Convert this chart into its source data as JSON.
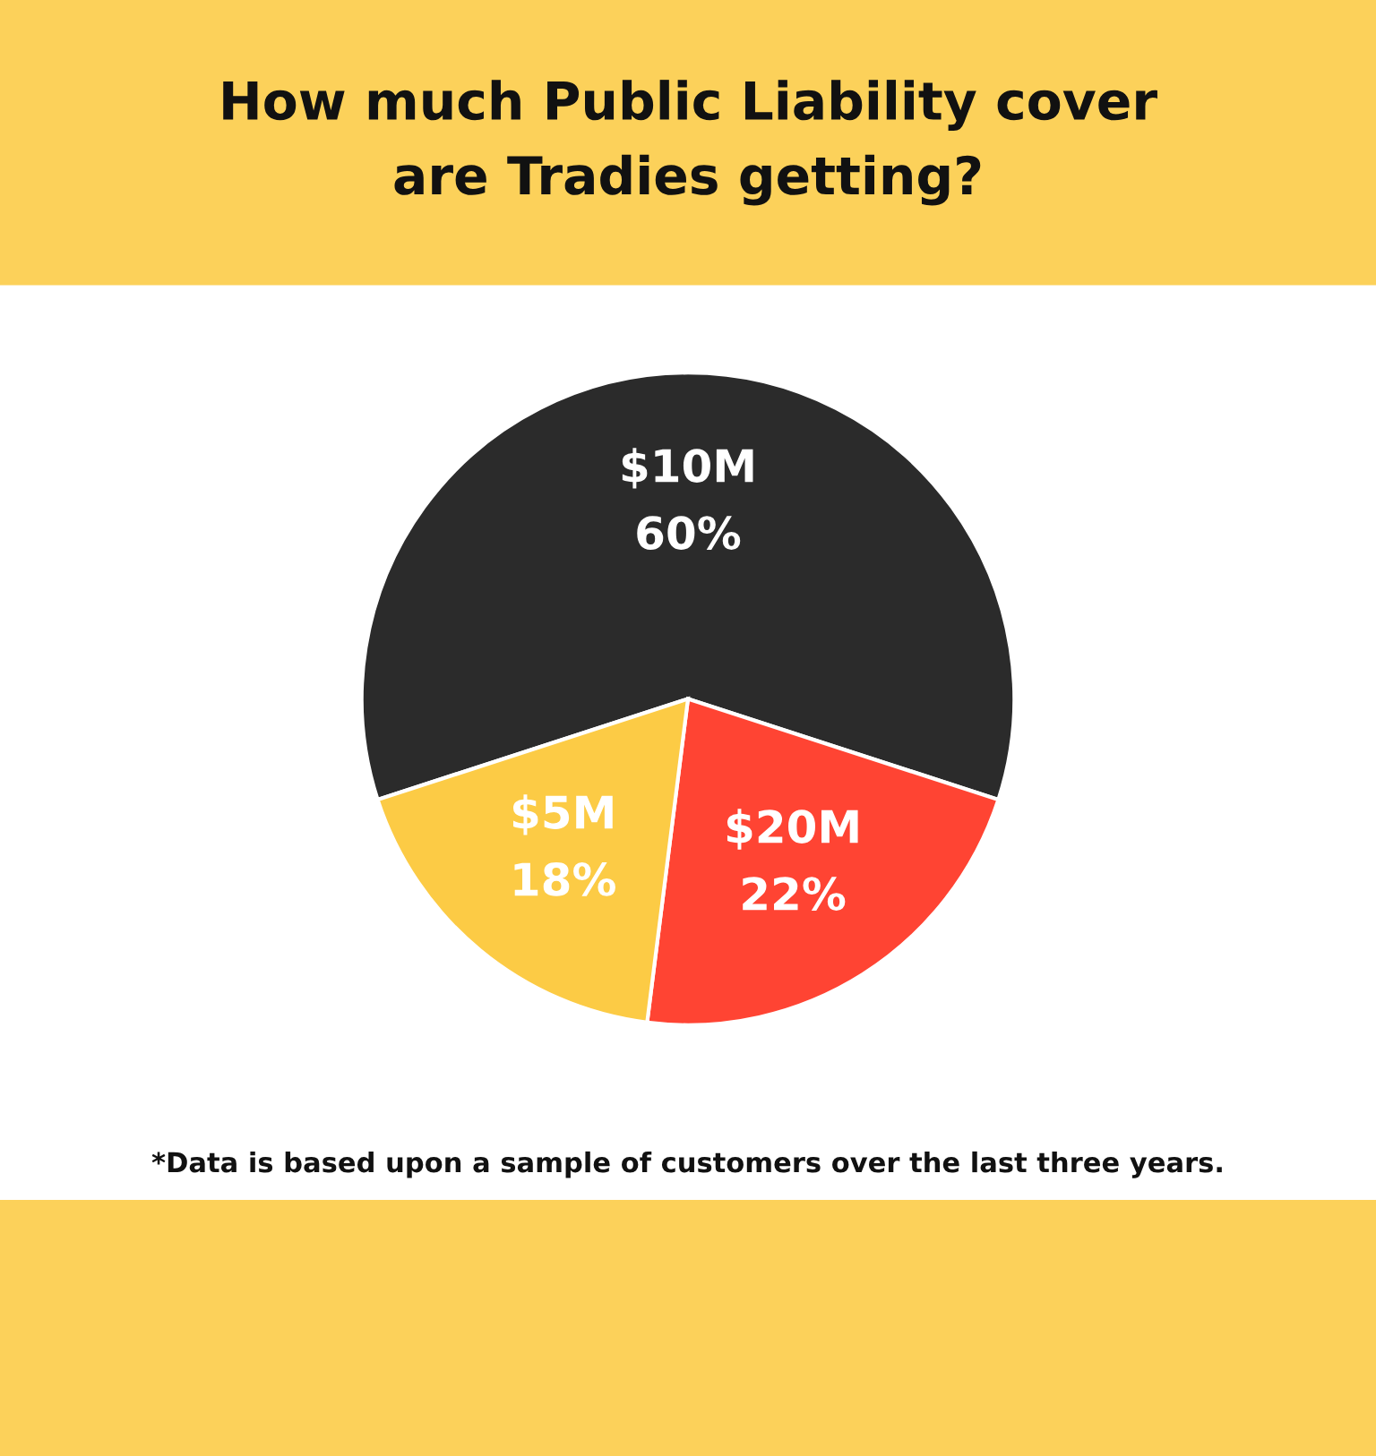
{
  "chart_data": {
    "type": "pie",
    "title": "How much Public Liability cover\nare Tradies getting?",
    "categories": [
      "$10M",
      "$20M",
      "$5M"
    ],
    "values": [
      60,
      22,
      18
    ],
    "value_labels": [
      "60%",
      "22%",
      "18%"
    ],
    "colors": [
      "#2b2b2b",
      "#ff4433",
      "#fccb45"
    ],
    "annotations": [
      "*Data is based upon a sample of customers over the last three years."
    ]
  }
}
